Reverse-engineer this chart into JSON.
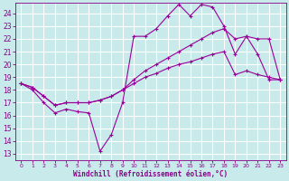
{
  "xlabel": "Windchill (Refroidissement éolien,°C)",
  "bg_color": "#c8eaea",
  "grid_color": "#aadddd",
  "line_color": "#990099",
  "x_ticks": [
    0,
    1,
    2,
    3,
    4,
    5,
    6,
    7,
    8,
    9,
    10,
    11,
    12,
    13,
    14,
    15,
    16,
    17,
    18,
    19,
    20,
    21,
    22,
    23
  ],
  "y_ticks": [
    13,
    14,
    15,
    16,
    17,
    18,
    19,
    20,
    21,
    22,
    23,
    24
  ],
  "xlim": [
    -0.5,
    23.5
  ],
  "ylim": [
    12.5,
    24.8
  ],
  "line1_x": [
    0,
    1,
    2,
    3,
    4,
    5,
    6,
    7,
    8,
    9,
    10,
    11,
    12,
    13,
    14,
    15,
    16,
    17,
    18,
    19,
    20,
    21,
    22,
    23
  ],
  "line1_y": [
    18.5,
    18.0,
    17.0,
    16.2,
    16.5,
    16.3,
    16.2,
    13.2,
    14.5,
    17.0,
    22.2,
    22.2,
    22.8,
    23.8,
    24.7,
    23.8,
    24.7,
    24.5,
    23.0,
    20.8,
    22.2,
    20.8,
    18.8,
    18.8
  ],
  "line2_x": [
    0,
    1,
    2,
    3,
    4,
    5,
    6,
    7,
    8,
    9,
    10,
    11,
    12,
    13,
    14,
    15,
    16,
    17,
    18,
    19,
    20,
    21,
    22,
    23
  ],
  "line2_y": [
    18.5,
    18.2,
    17.5,
    16.8,
    17.0,
    17.0,
    17.0,
    17.2,
    17.5,
    18.0,
    18.8,
    19.5,
    20.0,
    20.5,
    21.0,
    21.5,
    22.0,
    22.5,
    22.8,
    22.0,
    22.2,
    22.0,
    22.0,
    18.8
  ],
  "line3_x": [
    0,
    1,
    2,
    3,
    4,
    5,
    6,
    7,
    8,
    9,
    10,
    11,
    12,
    13,
    14,
    15,
    16,
    17,
    18,
    19,
    20,
    21,
    22,
    23
  ],
  "line3_y": [
    18.5,
    18.2,
    17.5,
    16.8,
    17.0,
    17.0,
    17.0,
    17.2,
    17.5,
    18.0,
    18.5,
    19.0,
    19.3,
    19.7,
    20.0,
    20.2,
    20.5,
    20.8,
    21.0,
    19.2,
    19.5,
    19.2,
    19.0,
    18.8
  ]
}
